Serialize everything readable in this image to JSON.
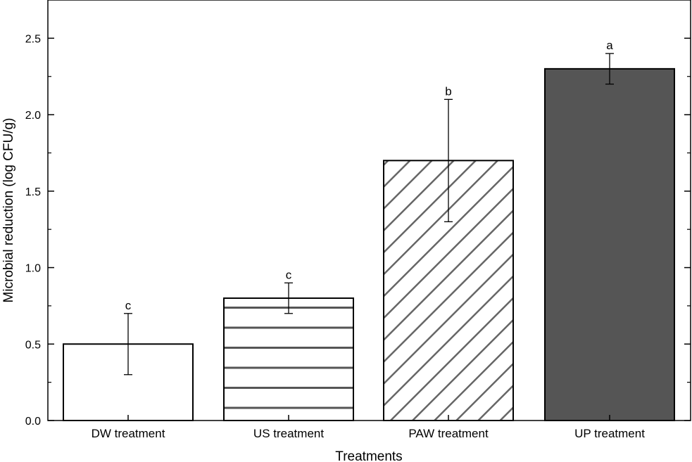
{
  "chart_data": {
    "type": "bar",
    "title": "",
    "xlabel": "Treatments",
    "ylabel": "Microbial reduction (log CFU/g)",
    "ylim": [
      0,
      2.75
    ],
    "yticks": [
      "0.0",
      "0.5",
      "1.0",
      "1.5",
      "2.0",
      "2.5"
    ],
    "ytick_values": [
      0,
      0.5,
      1.0,
      1.5,
      2.0,
      2.5
    ],
    "grid": false,
    "categories": [
      "DW treatment",
      "US treatment",
      "PAW treatment",
      "UP treatment"
    ],
    "values": [
      0.5,
      0.8,
      1.7,
      2.3
    ],
    "error_bars": [
      {
        "low": 0.3,
        "high": 0.7
      },
      {
        "low": 0.7,
        "high": 0.9
      },
      {
        "low": 1.3,
        "high": 2.1
      },
      {
        "low": 2.2,
        "high": 2.4
      }
    ],
    "significance_letters": [
      "c",
      "c",
      "b",
      "a"
    ],
    "fills": [
      "white",
      "horizontal-lines",
      "diagonal-hatch",
      "solid-dark"
    ],
    "colors": {
      "axis": "#000000",
      "bar_outline": "#000000",
      "pattern_line": "#555555",
      "dark_fill": "#555555"
    }
  }
}
